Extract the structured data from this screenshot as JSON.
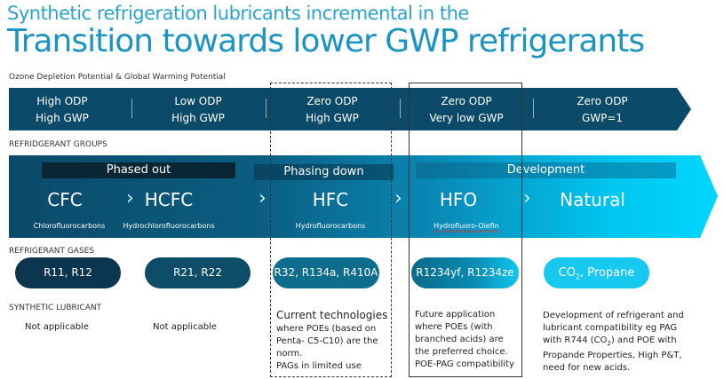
{
  "title": {
    "line1": "Synthetic refrigeration lubricants incremental in the",
    "line2": "Transition towards lower GWP refrigerants"
  },
  "odp": {
    "label": "Ozone Depletion Potential & Global Warming Potential",
    "items": [
      {
        "l1": "High ODP",
        "l2": "High GWP"
      },
      {
        "l1": "Low ODP",
        "l2": "High GWP"
      },
      {
        "l1": "Zero ODP",
        "l2": "High GWP"
      },
      {
        "l1": "Zero ODP",
        "l2": "Very low GWP"
      },
      {
        "l1": "Zero ODP",
        "l2": "GWP=1"
      }
    ]
  },
  "groups": {
    "label": "REFRIDGERANT GROUPS",
    "phases": [
      "Phased out",
      "Phasing down",
      "Development"
    ],
    "items": [
      {
        "name": "CFC",
        "sub": "Chlorofluorocarbons"
      },
      {
        "name": "HCFC",
        "sub": "Hydrochlorofluorocarbons"
      },
      {
        "name": "HFC",
        "sub": "Hydrofluorocarbons"
      },
      {
        "name": "HFO",
        "sub": "Hydrofluoro-Olefin"
      },
      {
        "name": "Natural",
        "sub": ""
      }
    ],
    "chevron": "›"
  },
  "gases": {
    "label": "REFRIGERANT GASES",
    "items": [
      "R11, R12",
      "R21, R22",
      "R32, R134a, R410A",
      "R1234yf, R1234ze"
    ],
    "co2": {
      "pre": "CO",
      "sub": "2",
      "post": ", Propane"
    }
  },
  "lubricant": {
    "label": "SYNTHETIC LUBRICANT",
    "items": [
      "Not applicable",
      "Not applicable"
    ],
    "current": {
      "big": "Current technologies",
      "rest": "where POEs (based on Penta- C5-C10) are the norm.",
      "last": "PAGs in limited use"
    },
    "future": {
      "text": "Future application where POEs (with branched acids) are the preferred choice.",
      "last": "POE-PAG compatibility"
    },
    "natural": {
      "a": "Development of refrigerant and lubricant compatibility eg PAG with R744 (CO",
      "sub": "2",
      "b": ") and POE with Propande Properties, High P&T, need for new acids."
    }
  }
}
